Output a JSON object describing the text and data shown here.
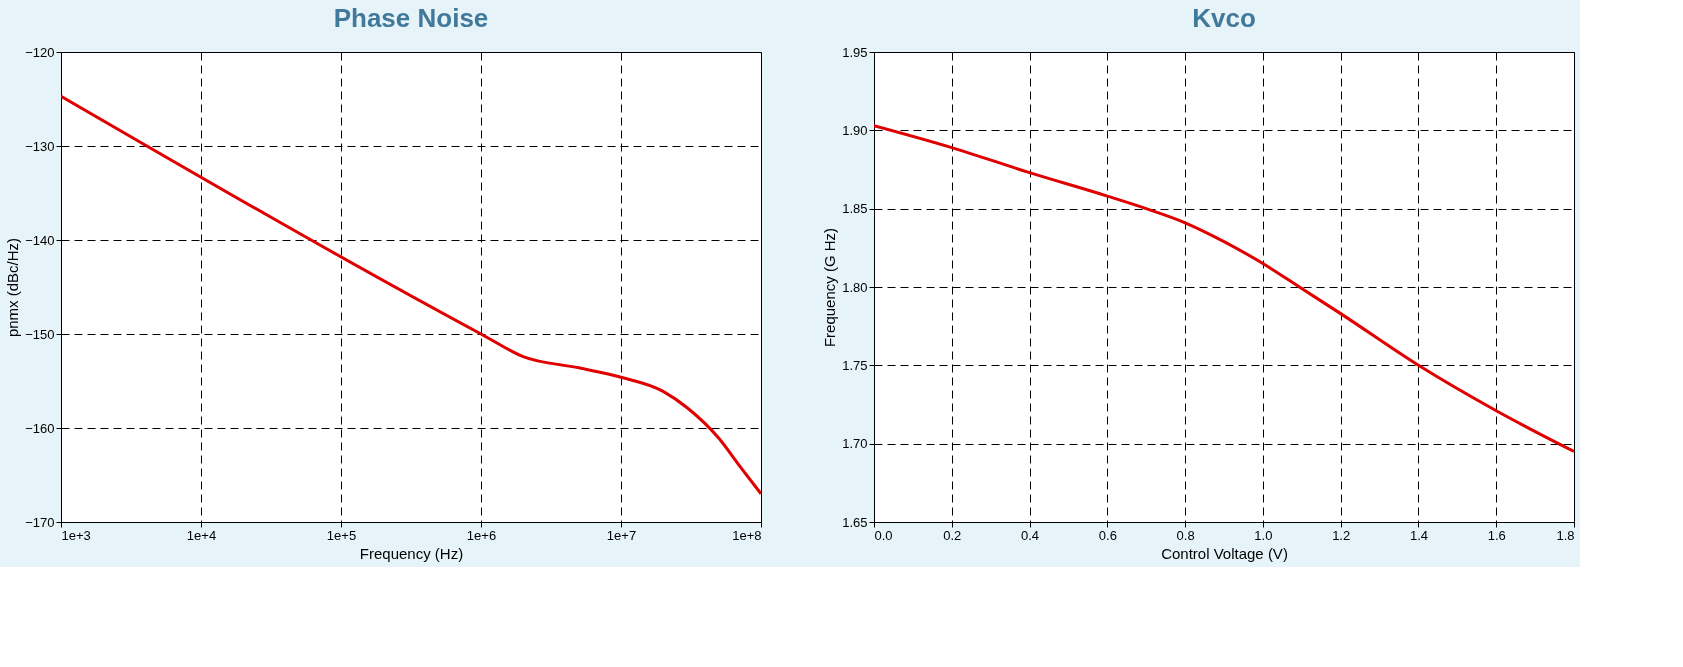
{
  "chart_data": [
    {
      "type": "line",
      "title": "Phase Noise",
      "xlabel": "Frequency (Hz)",
      "ylabel": "pnmx (dBc/Hz)",
      "log": "x",
      "grid": true,
      "xlim": [
        1000,
        100000000
      ],
      "xticks": [
        {
          "value": 1000,
          "label": "1e+3"
        },
        {
          "value": 10000,
          "label": "1e+4"
        },
        {
          "value": 100000,
          "label": "1e+5"
        },
        {
          "value": 1000000,
          "label": "1e+6"
        },
        {
          "value": 10000000,
          "label": "1e+7"
        },
        {
          "value": 100000000,
          "label": "1e+8"
        }
      ],
      "ylim": [
        -170,
        -120
      ],
      "yticks": [
        -170,
        -160,
        -150,
        -140,
        -130,
        -120
      ],
      "series": [
        {
          "color": "#e00000",
          "x": [
            1000,
            1000000,
            2000000,
            5000000,
            10000000,
            20000000,
            30000000,
            50000000,
            70000000,
            100000000
          ],
          "values": [
            -124.7,
            -150,
            -152.4,
            -153.6,
            -154.6,
            -156.1,
            -157.9,
            -161.1,
            -164,
            -167
          ]
        }
      ]
    },
    {
      "type": "line",
      "title": "Kvco",
      "xlabel": "Control Voltage (V)",
      "ylabel": "Frequency (G Hz)",
      "grid": true,
      "xlim": [
        0,
        1.8
      ],
      "xticks": [
        {
          "value": 0,
          "label": "0.0"
        },
        {
          "value": 0.2,
          "label": "0.2"
        },
        {
          "value": 0.4,
          "label": "0.4"
        },
        {
          "value": 0.6,
          "label": "0.6"
        },
        {
          "value": 0.8,
          "label": "0.8"
        },
        {
          "value": 1,
          "label": "1.0"
        },
        {
          "value": 1.2,
          "label": "1.2"
        },
        {
          "value": 1.4,
          "label": "1.4"
        },
        {
          "value": 1.6,
          "label": "1.6"
        },
        {
          "value": 1.8,
          "label": "1.8"
        }
      ],
      "ylim": [
        1.65,
        1.95
      ],
      "yticks": [
        {
          "value": 1.65,
          "label": "1.65"
        },
        {
          "value": 1.7,
          "label": "1.70"
        },
        {
          "value": 1.75,
          "label": "1.75"
        },
        {
          "value": 1.8,
          "label": "1.80"
        },
        {
          "value": 1.85,
          "label": "1.85"
        },
        {
          "value": 1.9,
          "label": "1.90"
        },
        {
          "value": 1.95,
          "label": "1.95"
        }
      ],
      "series": [
        {
          "color": "#e00000",
          "x": [
            0,
            0.2,
            0.4,
            0.6,
            0.7,
            0.8,
            0.9,
            1.0,
            1.1,
            1.2,
            1.4,
            1.6,
            1.8
          ],
          "values": [
            1.903,
            1.889,
            1.873,
            1.858,
            1.85,
            1.841,
            1.829,
            1.815,
            1.799,
            1.783,
            1.75,
            1.721,
            1.695
          ]
        }
      ]
    }
  ]
}
